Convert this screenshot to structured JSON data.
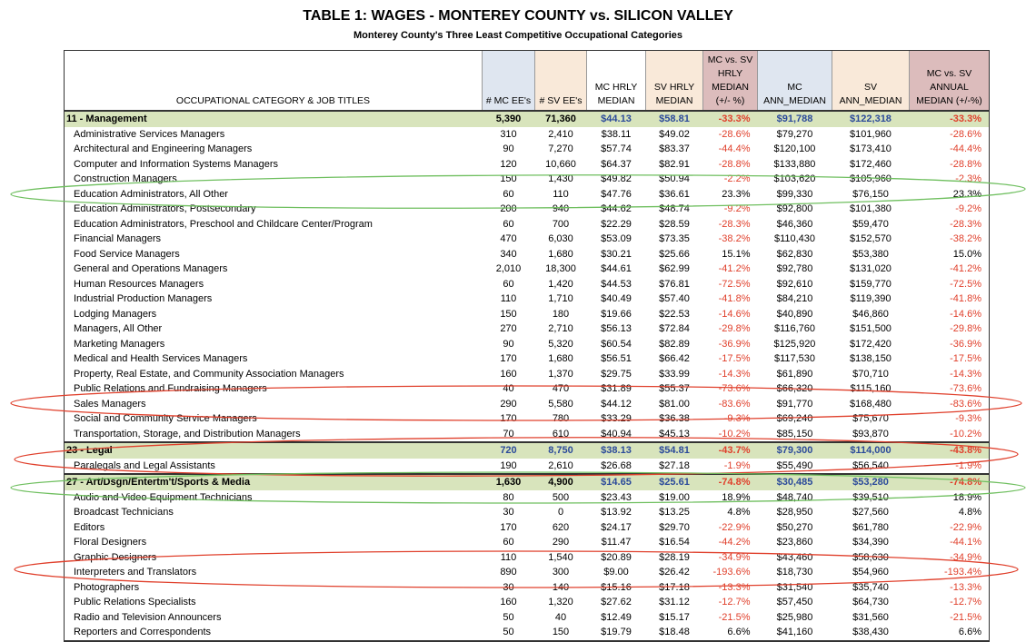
{
  "title": "TABLE 1:  WAGES - MONTEREY COUNTY vs. SILICON VALLEY",
  "subtitle": "Monterey County's Three Least Competitive Occupational Categories",
  "headers": [
    "OCCUPATIONAL CATEGORY & JOB TITLES",
    "# MC EE's",
    "# SV EE's",
    "MC HRLY MEDIAN",
    "SV HRLY MEDIAN",
    "MC vs. SV HRLY MEDIAN (+/- %)",
    "MC ANN_MEDIAN",
    "SV ANN_MEDIAN",
    "MC vs. SV ANNUAL MEDIAN (+/-%)"
  ],
  "colors": {
    "category_bg": "#d8e4bc",
    "negative": "#e0402c",
    "category_money": "#2b4a9a",
    "highlight_green": "#6fbf5f",
    "highlight_red": "#e0402c"
  },
  "rows": [
    {
      "cat": true,
      "c": [
        "11 - Management",
        "5,390",
        "71,360",
        "$44.13",
        "$58.81",
        "-33.3%",
        "$91,788",
        "$122,318",
        "-33.3%"
      ]
    },
    {
      "c": [
        "Administrative Services Managers",
        "310",
        "2,410",
        "$38.11",
        "$49.02",
        "-28.6%",
        "$79,270",
        "$101,960",
        "-28.6%"
      ]
    },
    {
      "c": [
        "Architectural and Engineering Managers",
        "90",
        "7,270",
        "$57.74",
        "$83.37",
        "-44.4%",
        "$120,100",
        "$173,410",
        "-44.4%"
      ]
    },
    {
      "c": [
        "Computer and Information Systems Managers",
        "120",
        "10,660",
        "$64.37",
        "$82.91",
        "-28.8%",
        "$133,880",
        "$172,460",
        "-28.8%"
      ]
    },
    {
      "c": [
        "Construction Managers",
        "150",
        "1,430",
        "$49.82",
        "$50.94",
        "-2.2%",
        "$103,620",
        "$105,960",
        "-2.3%"
      ]
    },
    {
      "c": [
        "Education Administrators, All Other",
        "60",
        "110",
        "$47.76",
        "$36.61",
        "23.3%",
        "$99,330",
        "$76,150",
        "23.3%"
      ]
    },
    {
      "c": [
        "Education Administrators, Postsecondary",
        "200",
        "940",
        "$44.62",
        "$48.74",
        "-9.2%",
        "$92,800",
        "$101,380",
        "-9.2%"
      ]
    },
    {
      "c": [
        "Education Administrators, Preschool and Childcare Center/Program",
        "60",
        "700",
        "$22.29",
        "$28.59",
        "-28.3%",
        "$46,360",
        "$59,470",
        "-28.3%"
      ]
    },
    {
      "c": [
        "Financial Managers",
        "470",
        "6,030",
        "$53.09",
        "$73.35",
        "-38.2%",
        "$110,430",
        "$152,570",
        "-38.2%"
      ]
    },
    {
      "c": [
        "Food Service Managers",
        "340",
        "1,680",
        "$30.21",
        "$25.66",
        "15.1%",
        "$62,830",
        "$53,380",
        "15.0%"
      ]
    },
    {
      "c": [
        "General and Operations Managers",
        "2,010",
        "18,300",
        "$44.61",
        "$62.99",
        "-41.2%",
        "$92,780",
        "$131,020",
        "-41.2%"
      ]
    },
    {
      "c": [
        "Human Resources Managers",
        "60",
        "1,420",
        "$44.53",
        "$76.81",
        "-72.5%",
        "$92,610",
        "$159,770",
        "-72.5%"
      ]
    },
    {
      "c": [
        "Industrial Production Managers",
        "110",
        "1,710",
        "$40.49",
        "$57.40",
        "-41.8%",
        "$84,210",
        "$119,390",
        "-41.8%"
      ]
    },
    {
      "c": [
        "Lodging Managers",
        "150",
        "180",
        "$19.66",
        "$22.53",
        "-14.6%",
        "$40,890",
        "$46,860",
        "-14.6%"
      ]
    },
    {
      "c": [
        "Managers, All Other",
        "270",
        "2,710",
        "$56.13",
        "$72.84",
        "-29.8%",
        "$116,760",
        "$151,500",
        "-29.8%"
      ]
    },
    {
      "c": [
        "Marketing Managers",
        "90",
        "5,320",
        "$60.54",
        "$82.89",
        "-36.9%",
        "$125,920",
        "$172,420",
        "-36.9%"
      ]
    },
    {
      "c": [
        "Medical and Health Services Managers",
        "170",
        "1,680",
        "$56.51",
        "$66.42",
        "-17.5%",
        "$117,530",
        "$138,150",
        "-17.5%"
      ]
    },
    {
      "c": [
        "Property, Real Estate, and Community Association Managers",
        "160",
        "1,370",
        "$29.75",
        "$33.99",
        "-14.3%",
        "$61,890",
        "$70,710",
        "-14.3%"
      ]
    },
    {
      "c": [
        "Public Relations and Fundraising Managers",
        "40",
        "470",
        "$31.89",
        "$55.37",
        "-73.6%",
        "$66,320",
        "$115,160",
        "-73.6%"
      ]
    },
    {
      "c": [
        "Sales Managers",
        "290",
        "5,580",
        "$44.12",
        "$81.00",
        "-83.6%",
        "$91,770",
        "$168,480",
        "-83.6%"
      ]
    },
    {
      "c": [
        "Social and Community Service Managers",
        "170",
        "780",
        "$33.29",
        "$36.38",
        "-9.3%",
        "$69,240",
        "$75,670",
        "-9.3%"
      ]
    },
    {
      "c": [
        "Transportation, Storage, and Distribution Managers",
        "70",
        "610",
        "$40.94",
        "$45.13",
        "-10.2%",
        "$85,150",
        "$93,870",
        "-10.2%"
      ]
    },
    {
      "cat": true,
      "c": [
        "23 - Legal",
        "720",
        "8,750",
        "$38.13",
        "$54.81",
        "-43.7%",
        "$79,300",
        "$114,000",
        "-43.8%"
      ],
      "blue_counts": true
    },
    {
      "c": [
        "Paralegals and Legal Assistants",
        "190",
        "2,610",
        "$26.68",
        "$27.18",
        "-1.9%",
        "$55,490",
        "$56,540",
        "-1.9%"
      ]
    },
    {
      "cat": true,
      "c": [
        "27 - Art/Dsgn/Entertm't/Sports & Media",
        "1,630",
        "4,900",
        "$14.65",
        "$25.61",
        "-74.8%",
        "$30,485",
        "$53,280",
        "-74.8%"
      ]
    },
    {
      "c": [
        "Audio and Video Equipment Technicians",
        "80",
        "500",
        "$23.43",
        "$19.00",
        "18.9%",
        "$48,740",
        "$39,510",
        "18.9%"
      ]
    },
    {
      "c": [
        "Broadcast Technicians",
        "30",
        "0",
        "$13.92",
        "$13.25",
        "4.8%",
        "$28,950",
        "$27,560",
        "4.8%"
      ]
    },
    {
      "c": [
        "Editors",
        "170",
        "620",
        "$24.17",
        "$29.70",
        "-22.9%",
        "$50,270",
        "$61,780",
        "-22.9%"
      ]
    },
    {
      "c": [
        "Floral Designers",
        "60",
        "290",
        "$11.47",
        "$16.54",
        "-44.2%",
        "$23,860",
        "$34,390",
        "-44.1%"
      ]
    },
    {
      "c": [
        "Graphic Designers",
        "110",
        "1,540",
        "$20.89",
        "$28.19",
        "-34.9%",
        "$43,460",
        "$58,630",
        "-34.9%"
      ]
    },
    {
      "c": [
        "Interpreters and Translators",
        "890",
        "300",
        "$9.00",
        "$26.42",
        "-193.6%",
        "$18,730",
        "$54,960",
        "-193.4%"
      ]
    },
    {
      "c": [
        "Photographers",
        "30",
        "140",
        "$15.16",
        "$17.18",
        "-13.3%",
        "$31,540",
        "$35,740",
        "-13.3%"
      ]
    },
    {
      "c": [
        "Public Relations Specialists",
        "160",
        "1,320",
        "$27.62",
        "$31.12",
        "-12.7%",
        "$57,450",
        "$64,730",
        "-12.7%"
      ]
    },
    {
      "c": [
        "Radio and Television Announcers",
        "50",
        "40",
        "$12.49",
        "$15.17",
        "-21.5%",
        "$25,980",
        "$31,560",
        "-21.5%"
      ]
    },
    {
      "c": [
        "Reporters and Correspondents",
        "50",
        "150",
        "$19.79",
        "$18.48",
        "6.6%",
        "$41,160",
        "$38,430",
        "6.6%"
      ]
    }
  ]
}
